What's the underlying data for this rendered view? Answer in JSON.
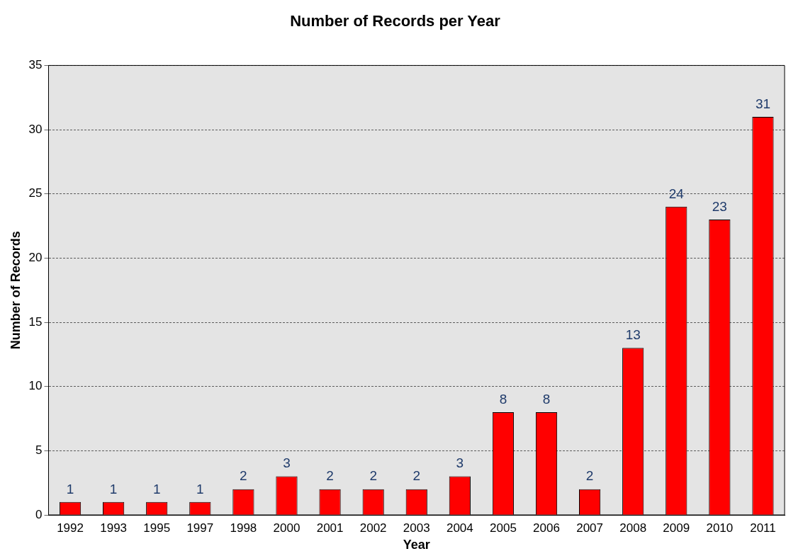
{
  "chart_data": {
    "type": "bar",
    "title": "Number of Records per Year",
    "xlabel": "Year",
    "ylabel": "Number of Records",
    "categories": [
      "1992",
      "1993",
      "1995",
      "1997",
      "1998",
      "2000",
      "2001",
      "2002",
      "2003",
      "2004",
      "2005",
      "2006",
      "2007",
      "2008",
      "2009",
      "2010",
      "2011"
    ],
    "values": [
      1,
      1,
      1,
      1,
      2,
      3,
      2,
      2,
      2,
      3,
      8,
      8,
      2,
      13,
      24,
      23,
      31
    ],
    "color": "#ff0000",
    "ylim": [
      0,
      35
    ],
    "yticks": [
      0,
      5,
      10,
      15,
      20,
      25,
      30,
      35
    ],
    "grid": "y",
    "data_labels": true,
    "legend": false
  }
}
